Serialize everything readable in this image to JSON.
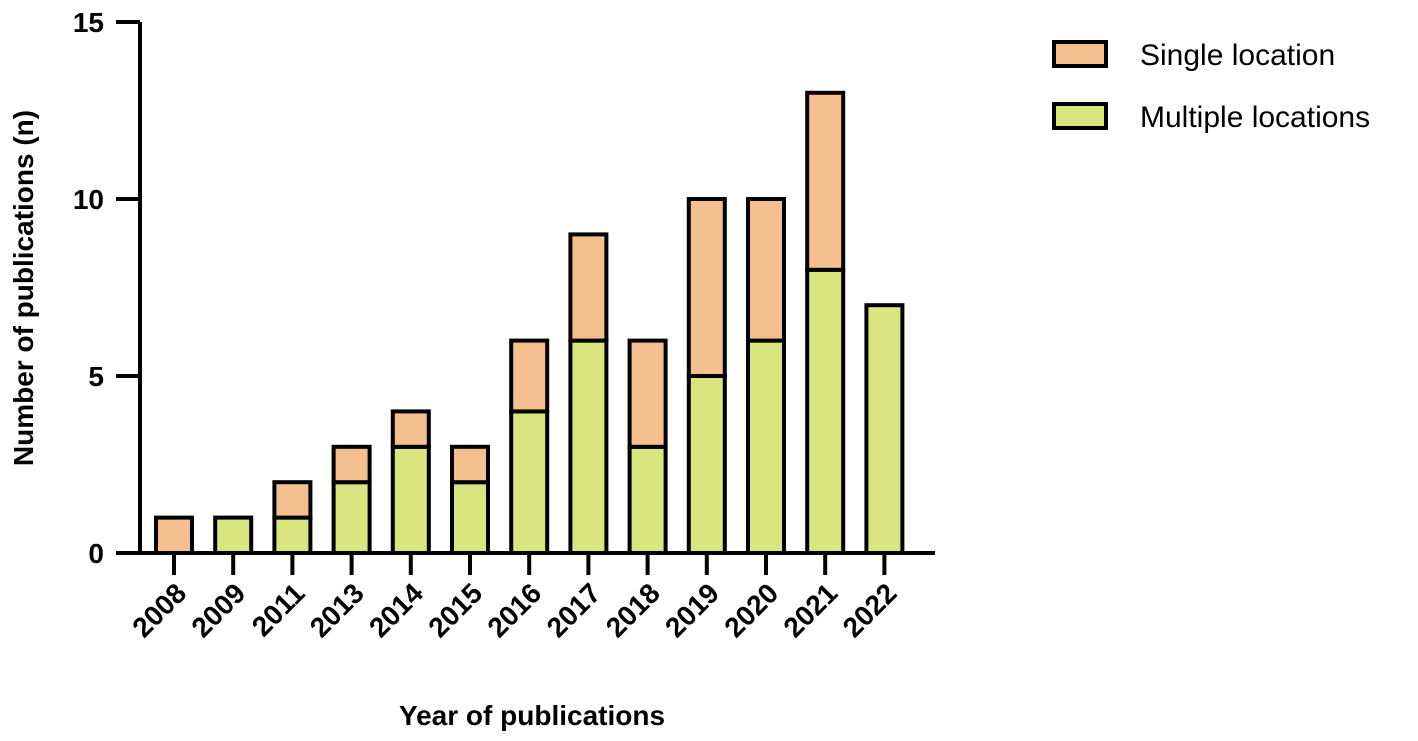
{
  "chart_data": {
    "type": "bar",
    "stacked": true,
    "categories": [
      "2008",
      "2009",
      "2011",
      "2013",
      "2014",
      "2015",
      "2016",
      "2017",
      "2018",
      "2019",
      "2020",
      "2021",
      "2022"
    ],
    "series": [
      {
        "name": "Multiple locations",
        "color": "#d9e67f",
        "values": [
          0,
          1,
          1,
          2,
          3,
          2,
          4,
          6,
          3,
          5,
          6,
          8,
          7
        ]
      },
      {
        "name": "Single location",
        "color": "#f5c08f",
        "values": [
          1,
          0,
          1,
          1,
          1,
          1,
          2,
          3,
          3,
          5,
          4,
          5,
          0
        ]
      }
    ],
    "legend_order": [
      "Single location",
      "Multiple locations"
    ],
    "xlabel": "Year of publications",
    "ylabel": "Number of publications (n)",
    "ylim": [
      0,
      15
    ],
    "yticks": [
      "0",
      "5",
      "10",
      "15"
    ],
    "grid": false,
    "legend_position": "top-right"
  }
}
